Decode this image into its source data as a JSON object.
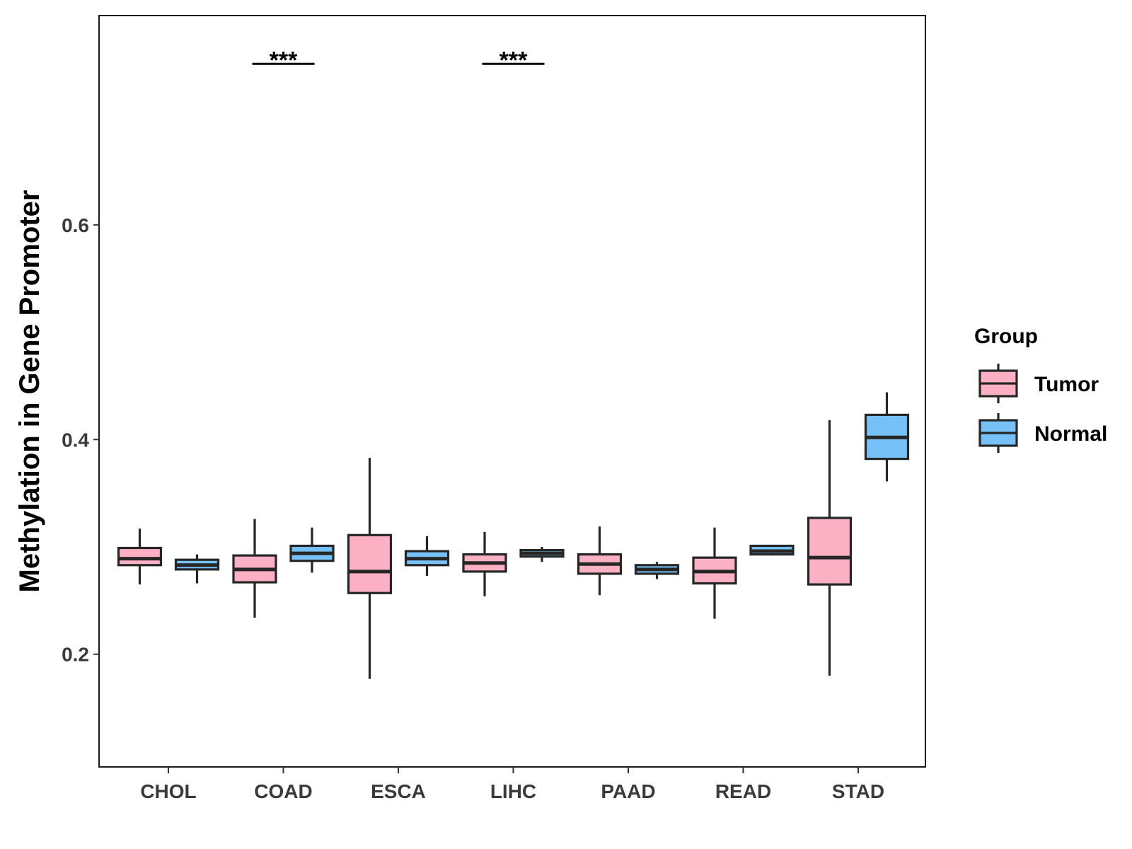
{
  "chart_data": {
    "type": "boxplot",
    "title": "",
    "xlabel": "",
    "ylabel": "Methylation in Gene Promoter",
    "ylim": [
      0.095,
      0.795
    ],
    "yticks": [
      {
        "value": 0.2,
        "label": "0.2"
      },
      {
        "value": 0.4,
        "label": "0.4"
      },
      {
        "value": 0.6,
        "label": "0.6"
      }
    ],
    "grid": false,
    "categories": [
      "CHOL",
      "COAD",
      "ESCA",
      "LIHC",
      "PAAD",
      "READ",
      "STAD"
    ],
    "legend": {
      "title": "Group",
      "position": "right",
      "entries": [
        {
          "name": "Tumor",
          "color": "#fbb1c3"
        },
        {
          "name": "Normal",
          "color": "#75c1f8"
        }
      ]
    },
    "series": [
      {
        "name": "Tumor",
        "color": "#fbb1c3",
        "boxes": [
          {
            "min": 0.265,
            "q1": 0.283,
            "median": 0.289,
            "q3": 0.299,
            "max": 0.317
          },
          {
            "min": 0.234,
            "q1": 0.267,
            "median": 0.279,
            "q3": 0.292,
            "max": 0.326
          },
          {
            "min": 0.177,
            "q1": 0.257,
            "median": 0.277,
            "q3": 0.311,
            "max": 0.383
          },
          {
            "min": 0.254,
            "q1": 0.277,
            "median": 0.285,
            "q3": 0.293,
            "max": 0.314
          },
          {
            "min": 0.255,
            "q1": 0.275,
            "median": 0.284,
            "q3": 0.293,
            "max": 0.319
          },
          {
            "min": 0.233,
            "q1": 0.266,
            "median": 0.277,
            "q3": 0.29,
            "max": 0.318
          },
          {
            "min": 0.18,
            "q1": 0.265,
            "median": 0.29,
            "q3": 0.327,
            "max": 0.418
          }
        ]
      },
      {
        "name": "Normal",
        "color": "#75c1f8",
        "boxes": [
          {
            "min": 0.266,
            "q1": 0.279,
            "median": 0.283,
            "q3": 0.288,
            "max": 0.293
          },
          {
            "min": 0.276,
            "q1": 0.287,
            "median": 0.294,
            "q3": 0.301,
            "max": 0.318
          },
          {
            "min": 0.273,
            "q1": 0.283,
            "median": 0.289,
            "q3": 0.296,
            "max": 0.31
          },
          {
            "min": 0.286,
            "q1": 0.291,
            "median": 0.294,
            "q3": 0.297,
            "max": 0.3
          },
          {
            "min": 0.27,
            "q1": 0.275,
            "median": 0.279,
            "q3": 0.283,
            "max": 0.286
          },
          {
            "min": 0.292,
            "q1": 0.293,
            "median": 0.296,
            "q3": 0.301,
            "max": 0.302
          },
          {
            "min": 0.361,
            "q1": 0.382,
            "median": 0.402,
            "q3": 0.423,
            "max": 0.444
          }
        ]
      }
    ],
    "annotations": [
      {
        "category": "COAD",
        "text": "***",
        "y": 0.75
      },
      {
        "category": "LIHC",
        "text": "***",
        "y": 0.75
      }
    ]
  }
}
